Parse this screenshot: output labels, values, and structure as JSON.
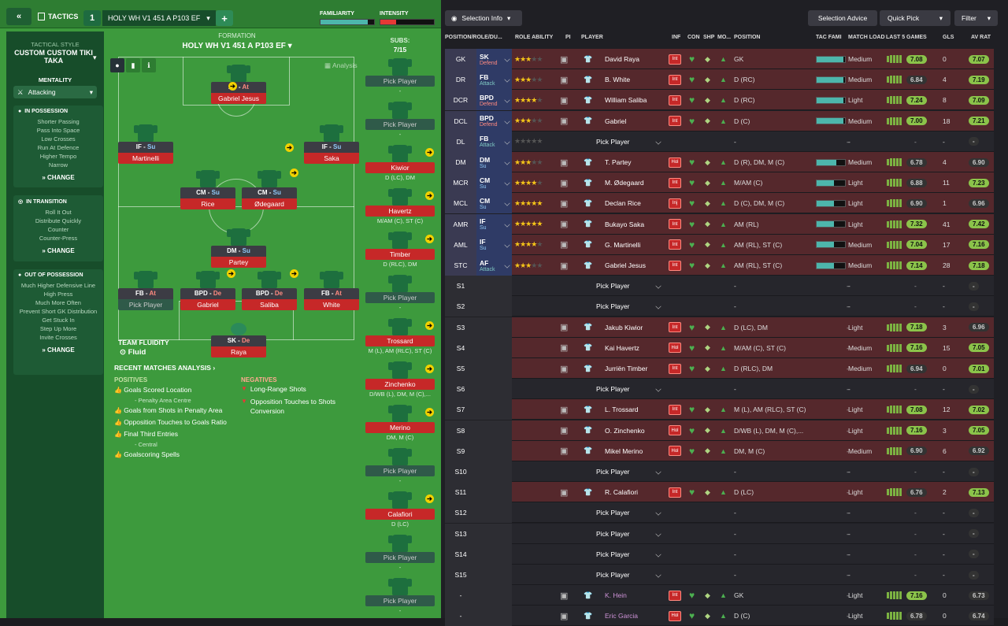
{
  "topbar": {
    "section": "TACTICS",
    "tactic_number": "1",
    "tactic_name": "HOLY WH V1  451 A P103 EF",
    "familiarity_label": "FAMILIARITY",
    "intensity_label": "INTENSITY"
  },
  "colors": {
    "pitch": "#3d9a3d",
    "sidebar": "#174d2a",
    "row_red": "#5a2a2e",
    "row_dark": "#26262c",
    "rating_green": "#8bc34a"
  },
  "sidebar": {
    "style_label": "TACTICAL STYLE",
    "style_name": "CUSTOM CUSTOM TIKI TAKA",
    "mentality_label": "MENTALITY",
    "mentality_value": "Attacking",
    "in_possession": {
      "title": "IN POSSESSION",
      "items": [
        "Shorter Passing",
        "Pass Into Space",
        "Low Crosses",
        "Run At Defence",
        "Higher Tempo",
        "Narrow"
      ],
      "change": "CHANGE"
    },
    "in_transition": {
      "title": "IN TRANSITION",
      "items": [
        "Roll It Out",
        "Distribute Quickly",
        "Counter",
        "Counter-Press"
      ],
      "change": "CHANGE"
    },
    "out_of_possession": {
      "title": "OUT OF POSSESSION",
      "items": [
        "Much Higher Defensive Line",
        "High Press",
        "Much More Often",
        "Prevent Short GK Distribution",
        "Get Stuck In",
        "Step Up More",
        "Invite Crosses"
      ],
      "change": "CHANGE"
    }
  },
  "formation": {
    "label": "FORMATION",
    "name": "HOLY WH V1  451 A P103 EF",
    "analysis": "Analysis",
    "subs_label": "SUBS:",
    "subs_count": "7/15"
  },
  "pitch_players": [
    {
      "key": "af",
      "role": "AF",
      "duty": "At",
      "name": "Gabriel Jesus"
    },
    {
      "key": "ifl",
      "role": "IF",
      "duty": "Su",
      "name": "Martinelli"
    },
    {
      "key": "ifr",
      "role": "IF",
      "duty": "Su",
      "name": "Saka"
    },
    {
      "key": "cml",
      "role": "CM",
      "duty": "Su",
      "name": "Rice"
    },
    {
      "key": "cmr",
      "role": "CM",
      "duty": "Su",
      "name": "Ødegaard"
    },
    {
      "key": "dm",
      "role": "DM",
      "duty": "Su",
      "name": "Partey"
    },
    {
      "key": "fbl",
      "role": "FB",
      "duty": "At",
      "name": "Pick Player"
    },
    {
      "key": "bpdl",
      "role": "BPD",
      "duty": "De",
      "name": "Gabriel"
    },
    {
      "key": "bpdr",
      "role": "BPD",
      "duty": "De",
      "name": "Saliba"
    },
    {
      "key": "fbr",
      "role": "FB",
      "duty": "At",
      "name": "White"
    },
    {
      "key": "sk",
      "role": "SK",
      "duty": "De",
      "name": "Raya"
    }
  ],
  "team_fluidity": {
    "label": "TEAM FLUIDITY",
    "value": "Fluid"
  },
  "subs": [
    {
      "name": "Pick Player",
      "pos": "-"
    },
    {
      "name": "Pick Player",
      "pos": "-"
    },
    {
      "name": "Kiwior",
      "pos": "D (LC), DM"
    },
    {
      "name": "Havertz",
      "pos": "M/AM (C), ST (C)"
    },
    {
      "name": "Timber",
      "pos": "D (RLC), DM"
    },
    {
      "name": "Pick Player",
      "pos": "-"
    },
    {
      "name": "Trossard",
      "pos": "M (L), AM (RLC), ST (C)"
    },
    {
      "name": "Zinchenko",
      "pos": "D/WB (L), DM, M (C),..."
    },
    {
      "name": "Merino",
      "pos": "DM, M (C)"
    },
    {
      "name": "Pick Player",
      "pos": "-"
    },
    {
      "name": "Calafiori",
      "pos": "D (LC)"
    },
    {
      "name": "Pick Player",
      "pos": "-"
    },
    {
      "name": "Pick Player",
      "pos": "-"
    }
  ],
  "analysis": {
    "title": "RECENT MATCHES ANALYSIS",
    "positives_label": "POSITIVES",
    "negatives_label": "NEGATIVES",
    "positives": [
      "Goals Scored Location",
      "- Penalty Area Centre",
      "Goals from Shots in Penalty Area",
      "Opposition Touches to Goals Ratio",
      "Final Third Entries",
      "- Central",
      "Goalscoring Spells"
    ],
    "negatives": [
      "Long-Range Shots",
      "Opposition Touches to Shots Conversion"
    ]
  },
  "right_toolbar": {
    "selection_info": "Selection Info",
    "selection_advice": "Selection Advice",
    "quick_pick": "Quick Pick",
    "filter": "Filter"
  },
  "columns": [
    "POSITION/ROLE/DU...",
    "ROLE ABILITY",
    "PI",
    "PLAYER",
    "INF",
    "CON",
    "SHP",
    "MO...",
    "POSITION",
    "TAC FAMI",
    "MATCH LOAD",
    "LAST 5 GAMES",
    "GLS",
    "AV RAT"
  ],
  "rows": [
    {
      "slot": "GK",
      "role": "SK",
      "duty": "Defend",
      "stars": 2.5,
      "player": "David Raya",
      "inf": "Int",
      "position": "GK",
      "fam": 0.95,
      "load": "Medium",
      "last5": "7.08",
      "gls": "0",
      "avr": "7.07",
      "red": true
    },
    {
      "slot": "DR",
      "role": "FB",
      "duty": "Attack",
      "stars": 3,
      "player": "B. White",
      "inf": "Int",
      "position": "D (RC)",
      "fam": 0.95,
      "load": "Medium",
      "last5": "6.84",
      "gls": "4",
      "avr": "7.19",
      "red": true
    },
    {
      "slot": "DCR",
      "role": "BPD",
      "duty": "Defend",
      "stars": 4,
      "player": "William Saliba",
      "inf": "Int",
      "position": "D (RC)",
      "fam": 0.95,
      "load": "Light",
      "last5": "7.24",
      "gls": "8",
      "avr": "7.09",
      "red": true
    },
    {
      "slot": "DCL",
      "role": "BPD",
      "duty": "Defend",
      "stars": 3,
      "player": "Gabriel",
      "inf": "Int",
      "position": "D (C)",
      "fam": 0.95,
      "load": "Medium",
      "last5": "7.00",
      "gls": "18",
      "avr": "7.21",
      "red": true
    },
    {
      "slot": "DL",
      "role": "FB",
      "duty": "Attack",
      "stars": 0,
      "player": "Pick Player",
      "inf": "",
      "position": "-",
      "fam": 0,
      "load": "-",
      "last5": "-",
      "gls": "-",
      "avr": "-",
      "red": false
    },
    {
      "slot": "DM",
      "role": "DM",
      "duty": "Su",
      "stars": 3,
      "player": "T. Partey",
      "inf": "Hol",
      "position": "D (R), DM, M (C)",
      "fam": 0.7,
      "load": "Medium",
      "last5": "6.78",
      "gls": "4",
      "avr": "6.90",
      "red": true
    },
    {
      "slot": "MCR",
      "role": "CM",
      "duty": "Su",
      "stars": 3.5,
      "player": "M. Ødegaard",
      "inf": "Int",
      "position": "M/AM (C)",
      "fam": 0.6,
      "load": "Light",
      "last5": "6.88",
      "gls": "11",
      "avr": "7.23",
      "red": true
    },
    {
      "slot": "MCL",
      "role": "CM",
      "duty": "Su",
      "stars": 4.5,
      "player": "Declan Rice",
      "inf": "Inj",
      "position": "D (C), DM, M (C)",
      "fam": 0.6,
      "load": "Light",
      "last5": "6.90",
      "gls": "1",
      "avr": "6.96",
      "red": true
    },
    {
      "slot": "AMR",
      "role": "IF",
      "duty": "Su",
      "stars": 4.5,
      "player": "Bukayo Saka",
      "inf": "Int",
      "position": "AM (RL)",
      "fam": 0.6,
      "load": "Light",
      "last5": "7.32",
      "gls": "41",
      "avr": "7.42",
      "red": true
    },
    {
      "slot": "AML",
      "role": "IF",
      "duty": "Su",
      "stars": 4,
      "player": "G. Martinelli",
      "inf": "Int",
      "position": "AM (RL), ST (C)",
      "fam": 0.6,
      "load": "Medium",
      "last5": "7.04",
      "gls": "17",
      "avr": "7.16",
      "red": true
    },
    {
      "slot": "STC",
      "role": "AF",
      "duty": "Attack",
      "stars": 3,
      "player": "Gabriel Jesus",
      "inf": "Int",
      "position": "AM (RL), ST (C)",
      "fam": 0.6,
      "load": "Medium",
      "last5": "7.14",
      "gls": "28",
      "avr": "7.18",
      "red": true
    },
    {
      "slot": "S1",
      "role": "",
      "duty": "",
      "stars": 0,
      "player": "Pick Player",
      "inf": "",
      "position": "-",
      "fam": 0,
      "load": "-",
      "last5": "-",
      "gls": "-",
      "avr": "-",
      "red": false
    },
    {
      "slot": "S2",
      "role": "",
      "duty": "",
      "stars": 0,
      "player": "Pick Player",
      "inf": "",
      "position": "-",
      "fam": 0,
      "load": "-",
      "last5": "-",
      "gls": "-",
      "avr": "-",
      "red": false
    },
    {
      "slot": "S3",
      "role": "",
      "duty": "",
      "stars": 0,
      "player": "Jakub Kiwior",
      "inf": "Int",
      "position": "D (LC), DM",
      "fam": 0,
      "load": "Light",
      "last5": "7.18",
      "gls": "3",
      "avr": "6.96",
      "red": true
    },
    {
      "slot": "S4",
      "role": "",
      "duty": "",
      "stars": 0,
      "player": "Kai Havertz",
      "inf": "Hol",
      "position": "M/AM (C), ST (C)",
      "fam": 0,
      "load": "Medium",
      "last5": "7.16",
      "gls": "15",
      "avr": "7.05",
      "red": true
    },
    {
      "slot": "S5",
      "role": "",
      "duty": "",
      "stars": 0,
      "player": "Jurriën Timber",
      "inf": "Int",
      "position": "D (RLC), DM",
      "fam": 0,
      "load": "Medium",
      "last5": "6.94",
      "gls": "0",
      "avr": "7.01",
      "red": true
    },
    {
      "slot": "S6",
      "role": "",
      "duty": "",
      "stars": 0,
      "player": "Pick Player",
      "inf": "",
      "position": "-",
      "fam": 0,
      "load": "-",
      "last5": "-",
      "gls": "-",
      "avr": "-",
      "red": false
    },
    {
      "slot": "S7",
      "role": "",
      "duty": "",
      "stars": 0,
      "player": "L. Trossard",
      "inf": "Int",
      "position": "M (L), AM (RLC), ST (C)",
      "fam": 0,
      "load": "Light",
      "last5": "7.08",
      "gls": "12",
      "avr": "7.02",
      "red": true
    },
    {
      "slot": "S8",
      "role": "",
      "duty": "",
      "stars": 0,
      "player": "O. Zinchenko",
      "inf": "Hol",
      "position": "D/WB (L), DM, M (C),...",
      "fam": 0,
      "load": "Light",
      "last5": "7.16",
      "gls": "3",
      "avr": "7.05",
      "red": true
    },
    {
      "slot": "S9",
      "role": "",
      "duty": "",
      "stars": 0,
      "player": "Mikel Merino",
      "inf": "Hol",
      "position": "DM, M (C)",
      "fam": 0,
      "load": "Medium",
      "last5": "6.90",
      "gls": "6",
      "avr": "6.92",
      "red": true
    },
    {
      "slot": "S10",
      "role": "",
      "duty": "",
      "stars": 0,
      "player": "Pick Player",
      "inf": "",
      "position": "-",
      "fam": 0,
      "load": "-",
      "last5": "-",
      "gls": "-",
      "avr": "-",
      "red": false
    },
    {
      "slot": "S11",
      "role": "",
      "duty": "",
      "stars": 0,
      "player": "R. Calafiori",
      "inf": "Int",
      "position": "D (LC)",
      "fam": 0,
      "load": "Light",
      "last5": "6.76",
      "gls": "2",
      "avr": "7.13",
      "red": true
    },
    {
      "slot": "S12",
      "role": "",
      "duty": "",
      "stars": 0,
      "player": "Pick Player",
      "inf": "",
      "position": "-",
      "fam": 0,
      "load": "-",
      "last5": "-",
      "gls": "-",
      "avr": "-",
      "red": false
    },
    {
      "slot": "S13",
      "role": "",
      "duty": "",
      "stars": 0,
      "player": "Pick Player",
      "inf": "",
      "position": "-",
      "fam": 0,
      "load": "-",
      "last5": "-",
      "gls": "-",
      "avr": "-",
      "red": false
    },
    {
      "slot": "S14",
      "role": "",
      "duty": "",
      "stars": 0,
      "player": "Pick Player",
      "inf": "",
      "position": "-",
      "fam": 0,
      "load": "-",
      "last5": "-",
      "gls": "-",
      "avr": "-",
      "red": false
    },
    {
      "slot": "S15",
      "role": "",
      "duty": "",
      "stars": 0,
      "player": "Pick Player",
      "inf": "",
      "position": "-",
      "fam": 0,
      "load": "-",
      "last5": "-",
      "gls": "-",
      "avr": "-",
      "red": false
    },
    {
      "slot": "-",
      "role": "",
      "duty": "",
      "stars": 0,
      "player": "K. Hein",
      "inf": "Int",
      "position": "GK",
      "fam": 0,
      "load": "Light",
      "last5": "7.16",
      "gls": "0",
      "avr": "6.73",
      "red": false
    },
    {
      "slot": "-",
      "role": "",
      "duty": "",
      "stars": 0,
      "player": "Eric Garcia",
      "inf": "Hol",
      "position": "D (C)",
      "fam": 0,
      "load": "Light",
      "last5": "6.78",
      "gls": "0",
      "avr": "6.74",
      "red": false
    }
  ]
}
